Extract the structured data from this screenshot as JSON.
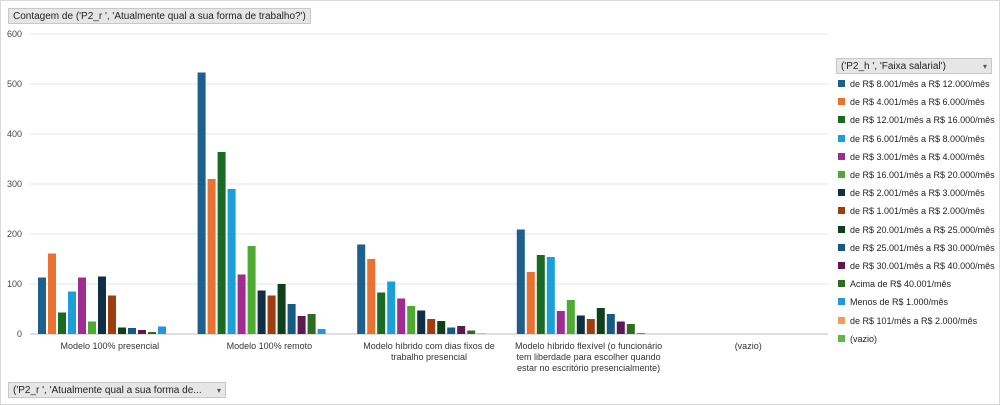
{
  "filters": {
    "top_label": "Contagem de ('P2_r ', 'Atualmente qual a sua forma de trabalho?')",
    "bottom_label": "('P2_r ', 'Atualmente qual a sua forma de...",
    "legend_header": "('P2_h ', 'Faixa salarial')",
    "dropdown_icon": "▾"
  },
  "chart_data": {
    "type": "bar",
    "ylim": [
      0,
      600
    ],
    "yticks": [
      0,
      100,
      200,
      300,
      400,
      500,
      600
    ],
    "grid": true,
    "legend_position": "right",
    "categories": [
      [
        "Modelo 100% presencial"
      ],
      [
        "Modelo 100% remoto"
      ],
      [
        "Modelo híbrido com dias fixos de",
        "trabalho presencial"
      ],
      [
        "Modelo híbrido flexível (o funcionário",
        "tem liberdade para escolher quando",
        "estar no escritório presencialmente)"
      ],
      [
        "(vazio)"
      ]
    ],
    "series": [
      {
        "name": "de R$ 8.001/mês a R$ 12.000/mês",
        "color": "#1f5f8b",
        "values": [
          113,
          523,
          179,
          209,
          0
        ]
      },
      {
        "name": "de R$ 4.001/mês a R$ 6.000/mês",
        "color": "#e97132",
        "values": [
          161,
          310,
          150,
          124,
          0
        ]
      },
      {
        "name": "de R$ 12.001/mês a R$ 16.000/mês",
        "color": "#196b24",
        "values": [
          43,
          364,
          83,
          158,
          0
        ]
      },
      {
        "name": "de R$ 6.001/mês a R$ 8.000/mês",
        "color": "#1b9fd8",
        "values": [
          85,
          290,
          105,
          154,
          0
        ]
      },
      {
        "name": "de R$ 3.001/mês a R$ 4.000/mês",
        "color": "#a02b93",
        "values": [
          113,
          119,
          71,
          46,
          0
        ]
      },
      {
        "name": "de R$ 16.001/mês a R$ 20.000/mês",
        "color": "#4eaa32",
        "values": [
          25,
          176,
          56,
          68,
          0
        ]
      },
      {
        "name": "de R$ 2.001/mês a R$ 3.000/mês",
        "color": "#0e2f44",
        "values": [
          115,
          87,
          47,
          37,
          0
        ]
      },
      {
        "name": "de R$ 1.001/mês a R$ 2.000/mês",
        "color": "#9c3e0f",
        "values": [
          77,
          77,
          30,
          30,
          0
        ]
      },
      {
        "name": "de R$ 20.001/mês a R$ 25.000/mês",
        "color": "#10401a",
        "values": [
          13,
          100,
          26,
          52,
          0
        ]
      },
      {
        "name": "de R$ 25.001/mês a R$ 30.000/mês",
        "color": "#155a82",
        "values": [
          12,
          60,
          13,
          40,
          0
        ]
      },
      {
        "name": "de R$ 30.001/mês a R$ 40.000/mês",
        "color": "#5c1a55",
        "values": [
          8,
          36,
          16,
          25,
          0
        ]
      },
      {
        "name": "Acima de R$ 40.001/mês",
        "color": "#2f6b20",
        "values": [
          4,
          40,
          7,
          20,
          0
        ]
      },
      {
        "name": "Menos de R$ 1.000/mês",
        "color": "#2596d6",
        "values": [
          15,
          10,
          1,
          2,
          0
        ]
      },
      {
        "name": "de R$ 101/mês a R$ 2.000/mês",
        "color": "#f29a64",
        "values": [
          0,
          0,
          0,
          0,
          0
        ]
      },
      {
        "name": "(vazio)",
        "color": "#5fb848",
        "values": [
          0,
          0,
          0,
          0,
          0
        ]
      }
    ]
  }
}
